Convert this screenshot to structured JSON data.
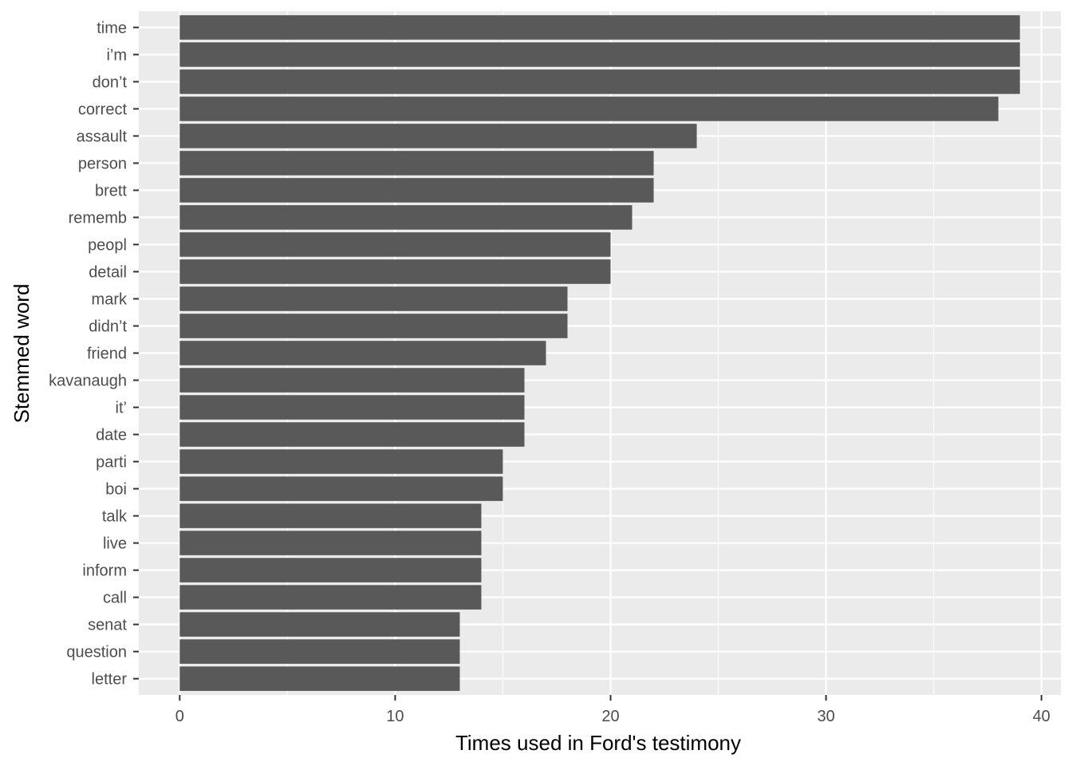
{
  "chart_data": {
    "type": "bar",
    "orientation": "horizontal",
    "title": "",
    "xlabel": "Times used in Ford's testimony",
    "ylabel": "Stemmed word",
    "xlim": [
      -1.9,
      40.9
    ],
    "xticks": [
      0,
      10,
      20,
      30,
      40
    ],
    "grid": true,
    "legend": "none",
    "colors": {
      "bar": "#595959",
      "panel": "#ebebeb",
      "grid_major": "#ffffff"
    },
    "categories": [
      "time",
      "i’m",
      "don’t",
      "correct",
      "assault",
      "person",
      "brett",
      "rememb",
      "peopl",
      "detail",
      "mark",
      "didn’t",
      "friend",
      "kavanaugh",
      "it’",
      "date",
      "parti",
      "boi",
      "talk",
      "live",
      "inform",
      "call",
      "senat",
      "question",
      "letter"
    ],
    "values": [
      39,
      39,
      39,
      38,
      24,
      22,
      22,
      21,
      20,
      20,
      18,
      18,
      17,
      16,
      16,
      16,
      15,
      15,
      14,
      14,
      14,
      14,
      13,
      13,
      13
    ]
  }
}
